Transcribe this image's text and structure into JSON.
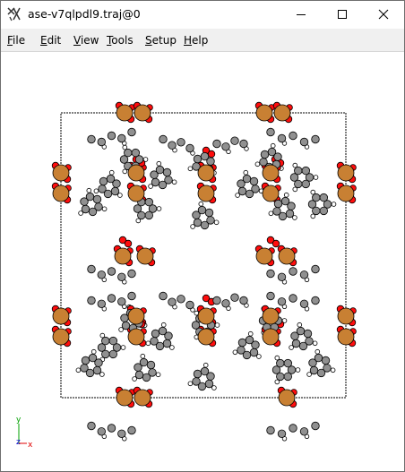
{
  "window": {
    "title": "ase-v7qlpdl9.traj@0"
  },
  "titlebar_buttons": {
    "minimize_icon": "minimize-icon",
    "maximize_icon": "maximize-icon",
    "close_icon": "close-icon"
  },
  "menu": {
    "items": [
      {
        "label": "File",
        "u": "F",
        "rest": "ile"
      },
      {
        "label": "Edit",
        "u": "E",
        "rest": "dit"
      },
      {
        "label": "View",
        "u": "V",
        "rest": "iew"
      },
      {
        "label": "Tools",
        "u": "T",
        "rest": "ools"
      },
      {
        "label": "Setup",
        "u": "S",
        "rest": "etup"
      },
      {
        "label": "Help",
        "u": "H",
        "rest": "elp"
      }
    ]
  },
  "viewer": {
    "axes": {
      "x_label": "x",
      "y_label": "y",
      "z_label": "z"
    },
    "atom_colors": {
      "carbon": "#909090",
      "oxygen": "#ff0d0d",
      "hydrogen": "#ffffff",
      "copper": "#c88033",
      "outline": "#000000"
    },
    "cell_color": "#000000"
  }
}
